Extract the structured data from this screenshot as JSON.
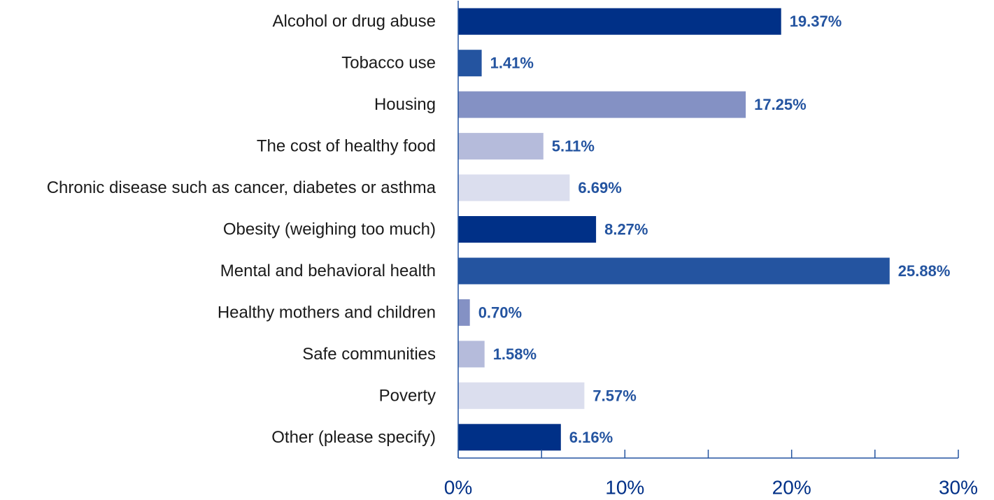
{
  "chart_data": {
    "type": "bar",
    "orientation": "horizontal",
    "categories": [
      "Alcohol or drug abuse",
      "Tobacco use",
      "Housing",
      "The cost of healthy food",
      "Chronic disease such as cancer, diabetes or asthma",
      "Obesity (weighing too much)",
      "Mental and behavioral health",
      "Healthy mothers and children",
      "Safe communities",
      "Poverty",
      "Other (please specify)"
    ],
    "values": [
      19.37,
      1.41,
      17.25,
      5.11,
      6.69,
      8.27,
      25.88,
      0.7,
      1.58,
      7.57,
      6.16
    ],
    "value_labels": [
      "19.37%",
      "1.41%",
      "17.25%",
      "5.11%",
      "6.69%",
      "8.27%",
      "25.88%",
      "0.70%",
      "1.58%",
      "7.57%",
      "6.16%"
    ],
    "bar_colors": [
      "#003087",
      "#2454a0",
      "#8491c4",
      "#b5bbdb",
      "#dbdeee",
      "#003087",
      "#2454a0",
      "#8491c4",
      "#b5bbdb",
      "#dbdeee",
      "#003087"
    ],
    "title": "",
    "xlabel": "",
    "ylabel": "",
    "xlim": [
      0,
      30
    ],
    "x_ticks": [
      0,
      10,
      20,
      30
    ],
    "x_tick_labels": [
      "0%",
      "10%",
      "20%",
      "30%"
    ],
    "minor_tick_step": 5,
    "grid": false,
    "legend": "none"
  },
  "colors": {
    "axis": "#2454a0",
    "value_label": "#2454a0",
    "tick_label": "#003087",
    "category_label": "#1a1a1a"
  }
}
